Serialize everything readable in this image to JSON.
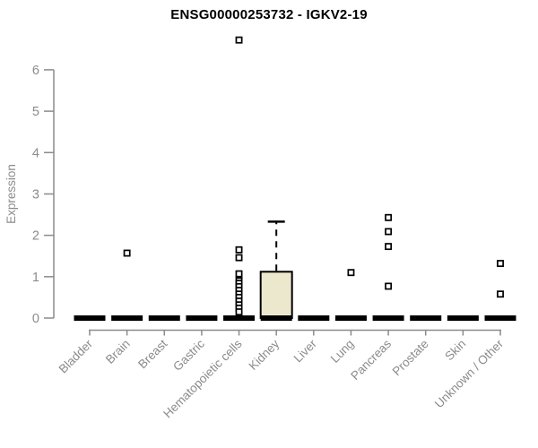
{
  "chart_data": {
    "type": "boxplot",
    "title": "ENSG00000253732 - IGKV2-19",
    "ylabel": "Expression",
    "xlabel": "",
    "axis_range_y": [
      0,
      6
    ],
    "yticks": [
      0,
      1,
      2,
      3,
      4,
      5,
      6
    ],
    "grid": false,
    "legend": "none",
    "categories": [
      "Bladder",
      "Brain",
      "Breast",
      "Gastric",
      "Hematopoietic cells",
      "Kidney",
      "Liver",
      "Lung",
      "Pancreas",
      "Prostate",
      "Skin",
      "Unknown / Other"
    ],
    "series": [
      {
        "category": "Bladder",
        "min": 0,
        "q1": 0,
        "median": 0,
        "q3": 0,
        "max": 0,
        "outliers": []
      },
      {
        "category": "Brain",
        "min": 0,
        "q1": 0,
        "median": 0,
        "q3": 0,
        "max": 0,
        "outliers": [
          1.57
        ]
      },
      {
        "category": "Breast",
        "min": 0,
        "q1": 0,
        "median": 0,
        "q3": 0,
        "max": 0,
        "outliers": []
      },
      {
        "category": "Gastric",
        "min": 0,
        "q1": 0,
        "median": 0,
        "q3": 0,
        "max": 0,
        "outliers": []
      },
      {
        "category": "Hematopoietic cells",
        "min": 0,
        "q1": 0,
        "median": 0,
        "q3": 0,
        "max": 0,
        "outliers": [
          6.72,
          1.65,
          1.46,
          1.07,
          0.9,
          0.84,
          0.76,
          0.67,
          0.58,
          0.5,
          0.41,
          0.32,
          0.24,
          0.15
        ]
      },
      {
        "category": "Kidney",
        "min": 0,
        "q1": 0,
        "median": 0,
        "q3": 1.12,
        "max": 2.33,
        "outliers": []
      },
      {
        "category": "Liver",
        "min": 0,
        "q1": 0,
        "median": 0,
        "q3": 0,
        "max": 0,
        "outliers": []
      },
      {
        "category": "Lung",
        "min": 0,
        "q1": 0,
        "median": 0,
        "q3": 0,
        "max": 0,
        "outliers": [
          1.1
        ]
      },
      {
        "category": "Pancreas",
        "min": 0,
        "q1": 0,
        "median": 0,
        "q3": 0,
        "max": 0,
        "outliers": [
          2.43,
          2.09,
          1.73,
          0.77
        ]
      },
      {
        "category": "Prostate",
        "min": 0,
        "q1": 0,
        "median": 0,
        "q3": 0,
        "max": 0,
        "outliers": []
      },
      {
        "category": "Skin",
        "min": 0,
        "q1": 0,
        "median": 0,
        "q3": 0,
        "max": 0,
        "outliers": []
      },
      {
        "category": "Unknown / Other",
        "min": 0,
        "q1": 0,
        "median": 0,
        "q3": 0,
        "max": 0,
        "outliers": [
          1.32,
          0.58
        ]
      }
    ],
    "colors": {
      "box_fill": "#ece8cd",
      "box_stroke": "#000000",
      "axis": "#8b8b8b",
      "tick_text": "#8b8b8b",
      "title_text": "#000000"
    }
  }
}
